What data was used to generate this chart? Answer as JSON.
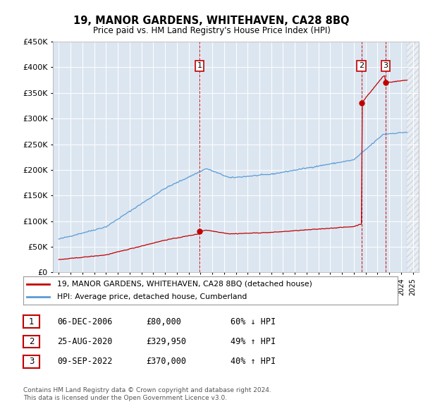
{
  "title": "19, MANOR GARDENS, WHITEHAVEN, CA28 8BQ",
  "subtitle": "Price paid vs. HM Land Registry's House Price Index (HPI)",
  "legend_line1": "19, MANOR GARDENS, WHITEHAVEN, CA28 8BQ (detached house)",
  "legend_line2": "HPI: Average price, detached house, Cumberland",
  "transactions": [
    {
      "label": "1",
      "date": "06-DEC-2006",
      "price": 80000,
      "pct": "60%",
      "dir": "↓",
      "x_year": 2006.92
    },
    {
      "label": "2",
      "date": "25-AUG-2020",
      "price": 329950,
      "pct": "49%",
      "dir": "↑",
      "x_year": 2020.64
    },
    {
      "label": "3",
      "date": "09-SEP-2022",
      "price": 370000,
      "pct": "40%",
      "dir": "↑",
      "x_year": 2022.69
    }
  ],
  "footer_line1": "Contains HM Land Registry data © Crown copyright and database right 2024.",
  "footer_line2": "This data is licensed under the Open Government Licence v3.0.",
  "hpi_color": "#5b9bd5",
  "price_color": "#c00000",
  "marker_color": "#c00000",
  "annotation_box_color": "#c00000",
  "bg_color": "#dce6f1",
  "plot_bg": "#ffffff",
  "ylim": [
    0,
    450000
  ],
  "xlim_start": 1994.5,
  "xlim_end": 2025.5
}
